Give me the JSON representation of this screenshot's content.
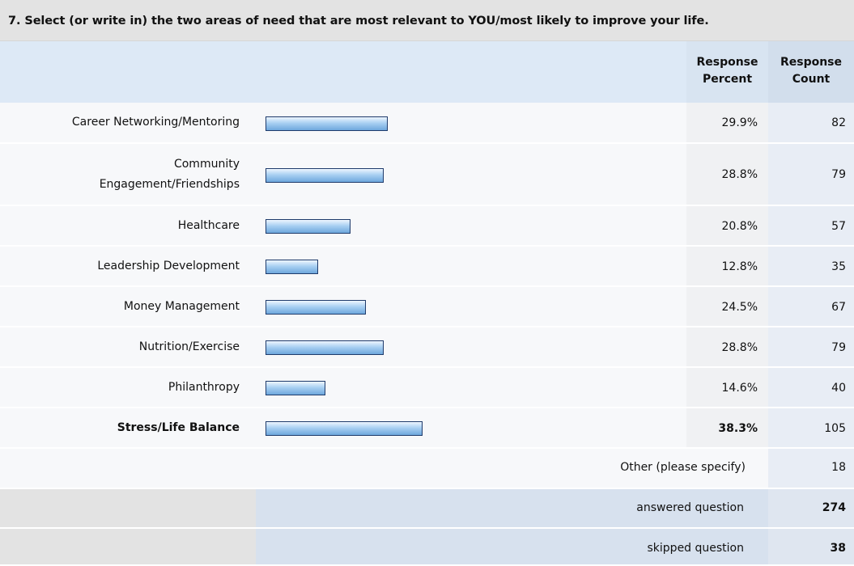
{
  "question_title": "7. Select (or write in) the two areas of need that are most relevant to YOU/most likely to improve your life.",
  "headers": {
    "response_percent": [
      "Response",
      "Percent"
    ],
    "response_count": [
      "Response",
      "Count"
    ]
  },
  "rows": [
    {
      "label": [
        "Career Networking/Mentoring"
      ],
      "percent": "29.9%",
      "count": "82",
      "bold": false
    },
    {
      "label": [
        "Community",
        "Engagement/Friendships"
      ],
      "percent": "28.8%",
      "count": "79",
      "bold": false
    },
    {
      "label": [
        "Healthcare"
      ],
      "percent": "20.8%",
      "count": "57",
      "bold": false
    },
    {
      "label": [
        "Leadership Development"
      ],
      "percent": "12.8%",
      "count": "35",
      "bold": false
    },
    {
      "label": [
        "Money Management"
      ],
      "percent": "24.5%",
      "count": "67",
      "bold": false
    },
    {
      "label": [
        "Nutrition/Exercise"
      ],
      "percent": "28.8%",
      "count": "79",
      "bold": false
    },
    {
      "label": [
        "Philanthropy"
      ],
      "percent": "14.6%",
      "count": "40",
      "bold": false
    },
    {
      "label": [
        "Stress/Life Balance"
      ],
      "percent": "38.3%",
      "count": "105",
      "bold": true
    }
  ],
  "other": {
    "label": "Other (please specify)",
    "count": "18"
  },
  "answered": {
    "label": "answered question",
    "count": "274"
  },
  "skipped": {
    "label": "skipped question",
    "count": "38"
  },
  "chart_data": {
    "type": "bar",
    "categories": [
      "Career Networking/Mentoring",
      "Community Engagement/Friendships",
      "Healthcare",
      "Leadership Development",
      "Money Management",
      "Nutrition/Exercise",
      "Philanthropy",
      "Stress/Life Balance"
    ],
    "values": [
      29.9,
      28.8,
      20.8,
      12.8,
      24.5,
      28.8,
      14.6,
      38.3
    ],
    "counts": [
      82,
      79,
      57,
      35,
      67,
      79,
      40,
      105
    ],
    "title": "7. Select (or write in) the two areas of need that are most relevant to YOU/most likely to improve your life.",
    "xlabel": "",
    "ylabel": "Response Percent",
    "orientation": "horizontal",
    "grid": false,
    "bar_color": "#8fc0ea",
    "bar_border": "#1f3b6b"
  }
}
